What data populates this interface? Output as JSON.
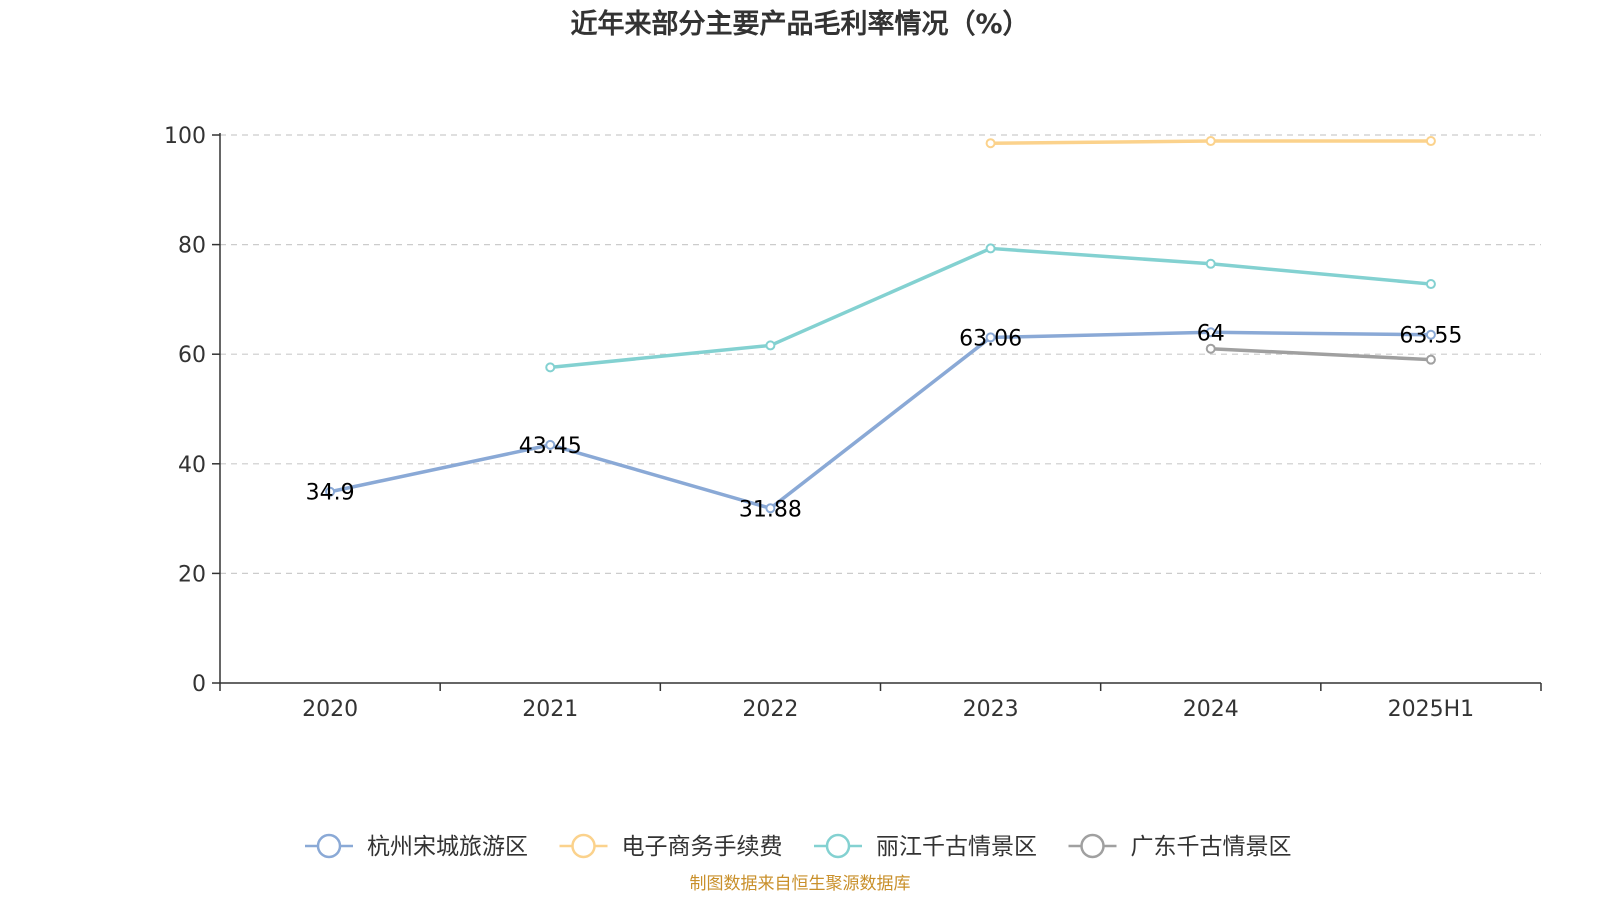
{
  "title": "近年来部分主要产品毛利率情况（%）",
  "source": "制图数据来自恒生聚源数据库",
  "chart_data": {
    "type": "line",
    "categories": [
      "2020",
      "2021",
      "2022",
      "2023",
      "2024",
      "2025H1"
    ],
    "ylim": [
      0,
      100
    ],
    "yticks": [
      0,
      20,
      40,
      60,
      80,
      100
    ],
    "grid": true,
    "legend_position": "bottom",
    "series": [
      {
        "name": "杭州宋城旅游区",
        "color": "#8aa9d6",
        "values": [
          34.9,
          43.45,
          31.88,
          63.06,
          64,
          63.55
        ],
        "labels": [
          "34.9",
          "43.45",
          "31.88",
          "63.06",
          "64",
          "63.55"
        ]
      },
      {
        "name": "电子商务手续费",
        "color": "#fbd28c",
        "values": [
          null,
          null,
          null,
          98.5,
          98.9,
          98.9
        ]
      },
      {
        "name": "丽江千古情景区",
        "color": "#83d1d1",
        "values": [
          null,
          57.6,
          61.6,
          79.3,
          76.5,
          72.8
        ]
      },
      {
        "name": "广东千古情景区",
        "color": "#a0a0a0",
        "values": [
          null,
          null,
          null,
          null,
          61,
          59
        ]
      }
    ]
  }
}
